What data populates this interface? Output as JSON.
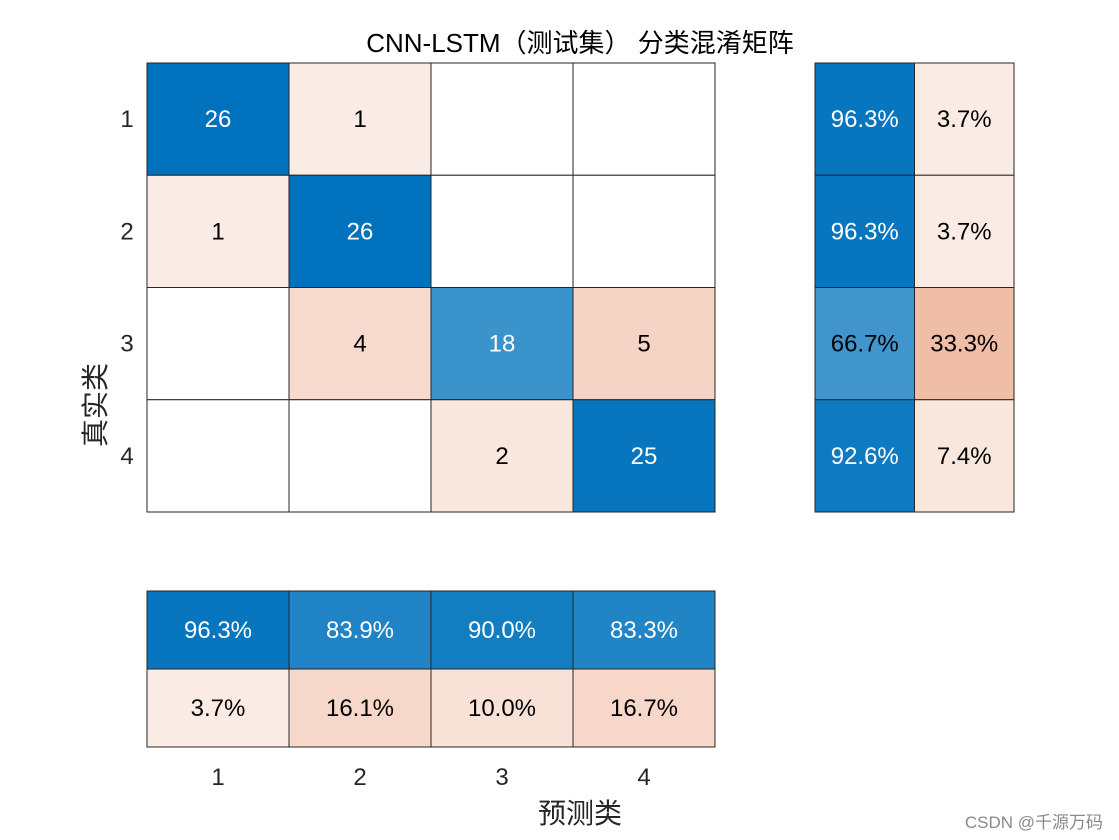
{
  "chart_data": {
    "type": "heatmap",
    "title": "CNN-LSTM（测试集） 分类混淆矩阵",
    "xlabel": "预测类",
    "ylabel": "真实类",
    "class_labels": [
      "1",
      "2",
      "3",
      "4"
    ],
    "confusion_matrix": [
      [
        26,
        1,
        0,
        0
      ],
      [
        1,
        26,
        0,
        0
      ],
      [
        0,
        4,
        18,
        5
      ],
      [
        0,
        0,
        2,
        25
      ]
    ],
    "row_summary": {
      "correct": [
        "96.3%",
        "96.3%",
        "66.7%",
        "92.6%"
      ],
      "incorrect": [
        "3.7%",
        "3.7%",
        "33.3%",
        "7.4%"
      ]
    },
    "column_summary": {
      "correct": [
        "96.3%",
        "83.9%",
        "90.0%",
        "83.3%"
      ],
      "incorrect": [
        "3.7%",
        "16.1%",
        "10.0%",
        "16.7%"
      ]
    }
  },
  "colors": {
    "diagonal": "#0072bd",
    "off_diagonal": "#d95319"
  },
  "watermark": "CSDN @千源万码"
}
